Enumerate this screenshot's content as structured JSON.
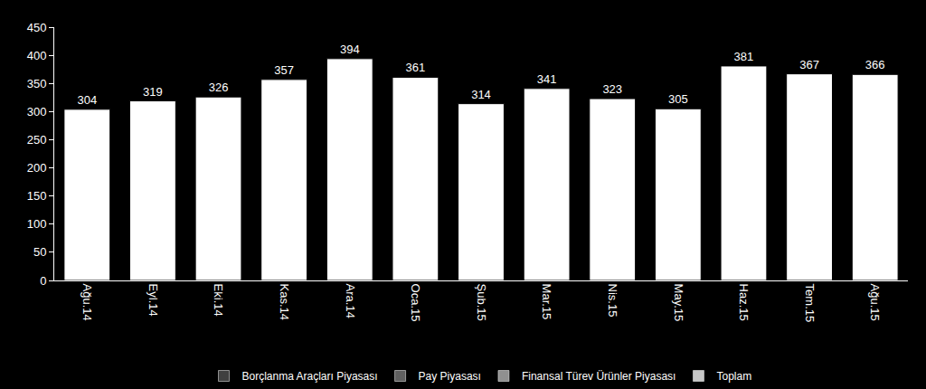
{
  "chart_data": {
    "type": "bar",
    "categories": [
      "Ağu.14",
      "Eyl.14",
      "Eki.14",
      "Kas.14",
      "Ara.14",
      "Oca.15",
      "Şub.15",
      "Mar.15",
      "Nis.15",
      "May.15",
      "Haz.15",
      "Tem.15",
      "Ağu.15"
    ],
    "values": [
      304,
      319,
      326,
      357,
      394,
      361,
      314,
      341,
      323,
      305,
      381,
      367,
      366
    ],
    "color": "#ffffff",
    "data_labels": true,
    "series": [
      {
        "name": "Borçlanma Araçları Piyasası",
        "color": "#404040",
        "values": [
          null,
          null,
          null,
          null,
          null,
          null,
          null,
          null,
          null,
          null,
          null,
          null,
          null
        ]
      },
      {
        "name": "Pay Piyasası",
        "color": "#606060",
        "values": [
          null,
          null,
          null,
          null,
          null,
          null,
          null,
          null,
          null,
          null,
          null,
          null,
          null
        ]
      },
      {
        "name": "Finansal Türev Ürünler Piyasası",
        "color": "#909090",
        "values": [
          null,
          null,
          null,
          null,
          null,
          null,
          null,
          null,
          null,
          null,
          null,
          null,
          null
        ]
      },
      {
        "name": "Toplam",
        "color": "#c8c8c8",
        "values": [
          null,
          null,
          null,
          null,
          null,
          null,
          null,
          null,
          null,
          null,
          null,
          null,
          null
        ]
      }
    ],
    "ylim": [
      0,
      450
    ],
    "yticks": [
      0,
      50,
      100,
      150,
      200,
      250,
      300,
      350,
      400,
      450
    ],
    "grid": false,
    "legend": "bottom"
  }
}
